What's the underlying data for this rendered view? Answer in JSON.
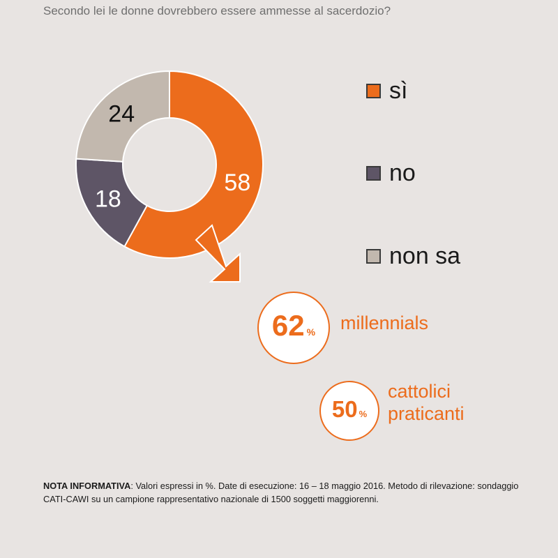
{
  "question": "Secondo lei le donne dovrebbero essere ammesse al sacerdozio?",
  "chart_data": {
    "type": "pie",
    "variant": "donut",
    "categories": [
      "sì",
      "no",
      "non sa"
    ],
    "values": [
      58,
      18,
      24
    ],
    "colors": [
      "#ec6c1c",
      "#5e5566",
      "#c2b8ae"
    ],
    "data_labels": [
      "58",
      "18",
      "24"
    ],
    "legend_placement": "right",
    "unit": "%"
  },
  "highlights": [
    {
      "value": "62",
      "unit": "%",
      "label": "millennials"
    },
    {
      "value": "50",
      "unit": "%",
      "label": "cattolici praticanti"
    }
  ],
  "note": {
    "heading": "NOTA INFORMATIVA",
    "text": ": Valori espressi in %. Date di esecuzione: 16 – 18 maggio 2016. Metodo di rilevazione: sondaggio CATI-CAWI su un campione rappresentativo nazionale di 1500 soggetti maggiorenni."
  },
  "icons": {
    "arrow": "arrow-down-right-icon"
  }
}
